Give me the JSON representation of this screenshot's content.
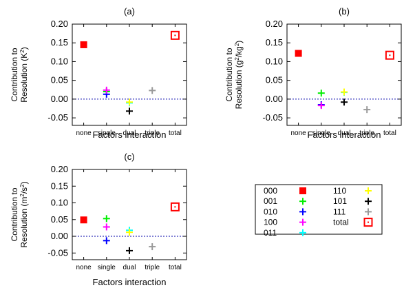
{
  "colors": {
    "000": "#ff0000",
    "001": "#00ee00",
    "010": "#0000ff",
    "100": "#ff00ff",
    "011": "#00ffff",
    "110": "#ffff00",
    "101": "#000000",
    "111": "#999999",
    "total": "#ff0000",
    "zero_line": "#0000aa"
  },
  "legend": {
    "entries": [
      {
        "key": "000",
        "label": "000",
        "marker": "square"
      },
      {
        "key": "001",
        "label": "001",
        "marker": "plus"
      },
      {
        "key": "010",
        "label": "010",
        "marker": "plus"
      },
      {
        "key": "100",
        "label": "100",
        "marker": "plus"
      },
      {
        "key": "011",
        "label": "011",
        "marker": "plus"
      },
      {
        "key": "110",
        "label": "110",
        "marker": "plus"
      },
      {
        "key": "101",
        "label": "101",
        "marker": "plus"
      },
      {
        "key": "111",
        "label": "111",
        "marker": "plus"
      },
      {
        "key": "total",
        "label": "total",
        "marker": "open-square"
      }
    ]
  },
  "chart_data": [
    {
      "type": "scatter",
      "panel_label": "(a)",
      "categories": [
        "none",
        "single",
        "dual",
        "triple",
        "total"
      ],
      "xlabel": "Factors interaction",
      "ylabel_line1": "Contribution to",
      "ylabel_line2_pre": "Resolution (K",
      "ylabel_line2_sup": "2",
      "ylabel_line2_post": ")",
      "ylim": [
        -0.07,
        0.2
      ],
      "yticks": [
        "0.20",
        "0.15",
        "0.10",
        "0.05",
        "0.00",
        "-0.05"
      ],
      "ytick_values": [
        0.2,
        0.15,
        0.1,
        0.05,
        0.0,
        -0.05
      ],
      "series": [
        {
          "key": "000",
          "category": "none",
          "value": 0.145
        },
        {
          "key": "001",
          "category": "single",
          "value": 0.02
        },
        {
          "key": "010",
          "category": "single",
          "value": 0.013
        },
        {
          "key": "100",
          "category": "single",
          "value": 0.024
        },
        {
          "key": "011",
          "category": "dual",
          "value": -0.01
        },
        {
          "key": "110",
          "category": "dual",
          "value": -0.008
        },
        {
          "key": "101",
          "category": "dual",
          "value": -0.032
        },
        {
          "key": "111",
          "category": "triple",
          "value": 0.023
        },
        {
          "key": "total",
          "category": "total",
          "value": 0.17
        }
      ]
    },
    {
      "type": "scatter",
      "panel_label": "(b)",
      "categories": [
        "none",
        "single",
        "dual",
        "triple",
        "total"
      ],
      "xlabel": "Factors interaction",
      "ylabel_line1": "Contribution to",
      "ylabel_line2_pre": "Resolution (g",
      "ylabel_line2_sup": "2",
      "ylabel_line2_mid": "/kg",
      "ylabel_line2_sup2": "2",
      "ylabel_line2_post": ")",
      "ylim": [
        -0.07,
        0.2
      ],
      "yticks": [
        "0.20",
        "0.15",
        "0.10",
        "0.05",
        "0.00",
        "-0.05"
      ],
      "ytick_values": [
        0.2,
        0.15,
        0.1,
        0.05,
        0.0,
        -0.05
      ],
      "series": [
        {
          "key": "000",
          "category": "none",
          "value": 0.122
        },
        {
          "key": "001",
          "category": "single",
          "value": 0.016
        },
        {
          "key": "010",
          "category": "single",
          "value": -0.015
        },
        {
          "key": "100",
          "category": "single",
          "value": -0.017
        },
        {
          "key": "011",
          "category": "dual",
          "value": 0.018
        },
        {
          "key": "110",
          "category": "dual",
          "value": 0.019
        },
        {
          "key": "101",
          "category": "dual",
          "value": -0.008
        },
        {
          "key": "111",
          "category": "triple",
          "value": -0.028
        },
        {
          "key": "total",
          "category": "total",
          "value": 0.117
        }
      ]
    },
    {
      "type": "scatter",
      "panel_label": "(c)",
      "categories": [
        "none",
        "single",
        "dual",
        "triple",
        "total"
      ],
      "xlabel": "Factors interaction",
      "ylabel_line1": "Contribution to",
      "ylabel_line2_pre": "Resolution (m",
      "ylabel_line2_sup": "2",
      "ylabel_line2_mid": "/s",
      "ylabel_line2_sup2": "2",
      "ylabel_line2_post": ")",
      "ylim": [
        -0.07,
        0.2
      ],
      "yticks": [
        "0.20",
        "0.15",
        "0.10",
        "0.05",
        "0.00",
        "-0.05"
      ],
      "ytick_values": [
        0.2,
        0.15,
        0.1,
        0.05,
        0.0,
        -0.05
      ],
      "series": [
        {
          "key": "000",
          "category": "none",
          "value": 0.049
        },
        {
          "key": "001",
          "category": "single",
          "value": 0.053
        },
        {
          "key": "010",
          "category": "single",
          "value": -0.013
        },
        {
          "key": "100",
          "category": "single",
          "value": 0.028
        },
        {
          "key": "011",
          "category": "dual",
          "value": 0.018
        },
        {
          "key": "110",
          "category": "dual",
          "value": 0.012
        },
        {
          "key": "101",
          "category": "dual",
          "value": -0.043
        },
        {
          "key": "111",
          "category": "triple",
          "value": -0.031
        },
        {
          "key": "total",
          "category": "total",
          "value": 0.088
        }
      ]
    }
  ]
}
